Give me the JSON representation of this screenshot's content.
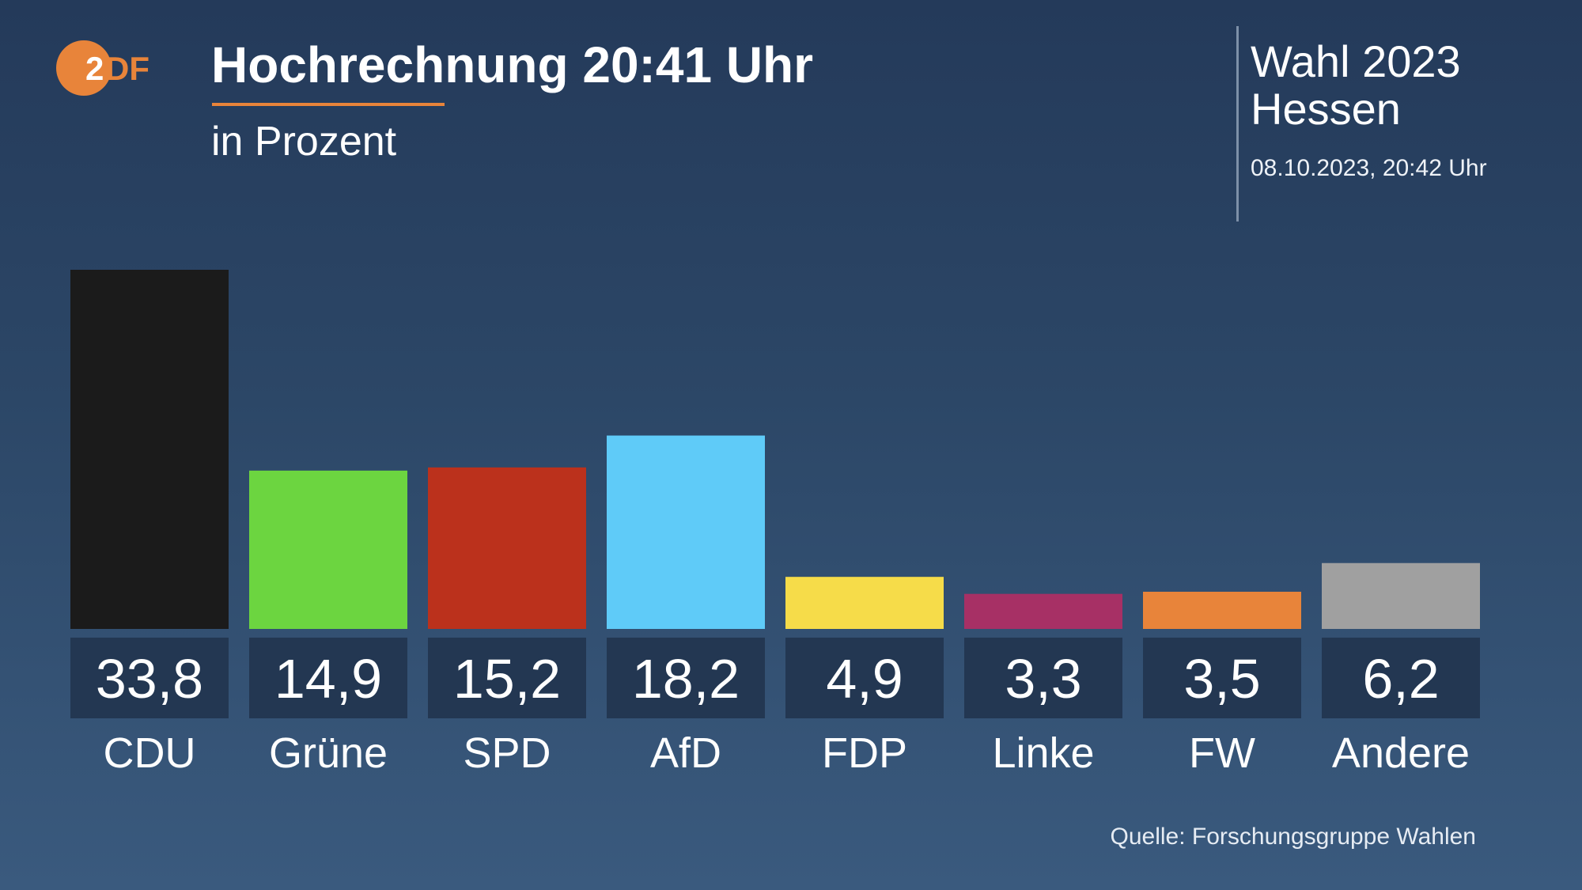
{
  "header": {
    "logo_text_white": "2",
    "logo_text_orange": "DF",
    "title": "Hochrechnung 20:41 Uhr",
    "subtitle": "in Prozent",
    "election_line1": "Wahl 2023",
    "election_line2": "Hessen",
    "datestamp": "08.10.2023, 20:42 Uhr"
  },
  "footer": {
    "source": "Quelle: Forschungsgruppe Wahlen"
  },
  "colors": {
    "accent": "#e8843a",
    "value_box": "#233752"
  },
  "chart_data": {
    "type": "bar",
    "title": "Hochrechnung 20:41 Uhr",
    "subtitle": "in Prozent",
    "xlabel": "",
    "ylabel": "Prozent",
    "ylim": [
      0,
      33.8
    ],
    "grid": false,
    "legend": "none",
    "categories": [
      "CDU",
      "Grüne",
      "SPD",
      "AfD",
      "FDP",
      "Linke",
      "FW",
      "Andere"
    ],
    "values": [
      33.8,
      14.9,
      15.2,
      18.2,
      4.9,
      3.3,
      3.5,
      6.2
    ],
    "value_labels": [
      "33,8",
      "14,9",
      "15,2",
      "18,2",
      "4,9",
      "3,3",
      "3,5",
      "6,2"
    ],
    "colors": [
      "#1b1b1b",
      "#6cd540",
      "#bb311c",
      "#5fcbf8",
      "#f6dc49",
      "#a73065",
      "#e8843a",
      "#a0a0a0"
    ]
  }
}
